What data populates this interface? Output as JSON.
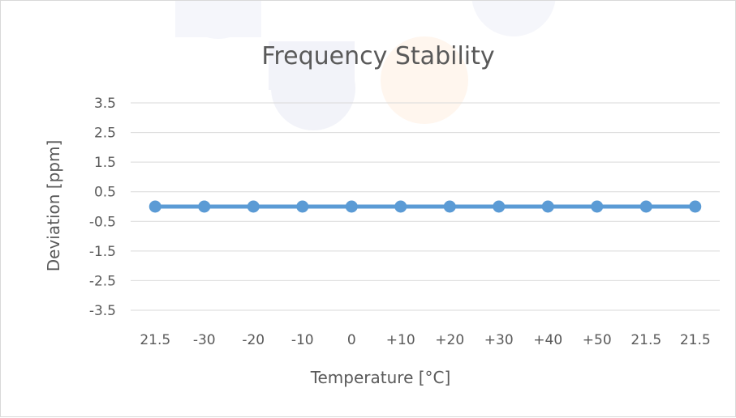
{
  "chart_data": {
    "type": "line",
    "title": "Frequency Stability",
    "xlabel": "Temperature [°C]",
    "ylabel": "Deviation [ppm]",
    "categories": [
      "21.5",
      "-30",
      "-20",
      "-10",
      "0",
      "+10",
      "+20",
      "+30",
      "+40",
      "+50",
      "21.5",
      "21.5"
    ],
    "series": [
      {
        "values": [
          0,
          0,
          0,
          0,
          0,
          0,
          0,
          0,
          0,
          0,
          0,
          0
        ],
        "color": "#5b9bd5"
      }
    ],
    "yticks": [
      "3.5",
      "2.5",
      "1.5",
      "0.5",
      "-0.5",
      "-1.5",
      "-2.5",
      "-3.5"
    ],
    "ylim": [
      -3.5,
      3.5
    ],
    "grid": true,
    "legend": "none"
  }
}
